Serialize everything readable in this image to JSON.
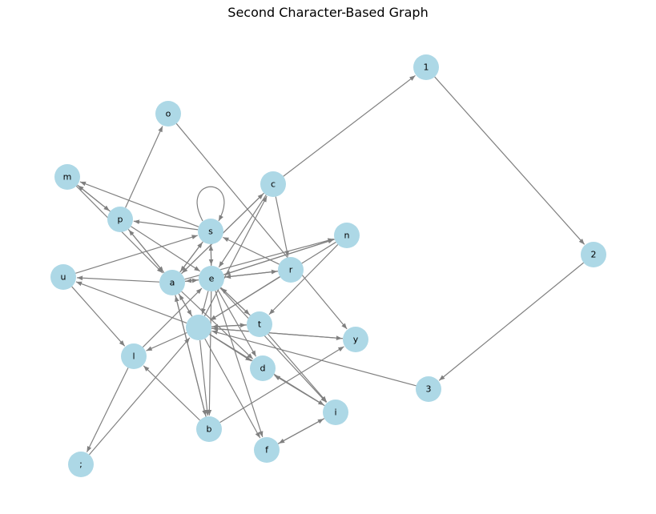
{
  "title": "Second Character-Based Graph",
  "colors": {
    "node": "#add8e6",
    "edge": "#808080",
    "background": "#ffffff"
  },
  "nodes": [
    {
      "id": "1",
      "label": "1"
    },
    {
      "id": "2",
      "label": "2"
    },
    {
      "id": "3",
      "label": "3"
    },
    {
      "id": "o",
      "label": "o"
    },
    {
      "id": "m",
      "label": "m"
    },
    {
      "id": "c",
      "label": "c"
    },
    {
      "id": "p",
      "label": "p"
    },
    {
      "id": "s",
      "label": "s"
    },
    {
      "id": "n",
      "label": "n"
    },
    {
      "id": "u",
      "label": "u"
    },
    {
      "id": "r",
      "label": "r"
    },
    {
      "id": "a",
      "label": "a"
    },
    {
      "id": "e",
      "label": "e"
    },
    {
      "id": "space",
      "label": " "
    },
    {
      "id": "t",
      "label": "t"
    },
    {
      "id": "y",
      "label": "y"
    },
    {
      "id": "l",
      "label": "l"
    },
    {
      "id": "d",
      "label": "d"
    },
    {
      "id": "i",
      "label": "i"
    },
    {
      "id": "b",
      "label": "b"
    },
    {
      "id": "f",
      "label": "f"
    },
    {
      "id": "semi",
      "label": ";"
    }
  ],
  "edges": [
    [
      "c",
      "1"
    ],
    [
      "1",
      "2"
    ],
    [
      "2",
      "3"
    ],
    [
      "3",
      "space"
    ],
    [
      "p",
      "o"
    ],
    [
      "o",
      "y"
    ],
    [
      "p",
      "m"
    ],
    [
      "m",
      "p"
    ],
    [
      "m",
      "a"
    ],
    [
      "s",
      "m"
    ],
    [
      "s",
      "s"
    ],
    [
      "s",
      "p"
    ],
    [
      "p",
      "a"
    ],
    [
      "p",
      "e"
    ],
    [
      "a",
      "p"
    ],
    [
      "a",
      "s"
    ],
    [
      "s",
      "a"
    ],
    [
      "s",
      "e"
    ],
    [
      "e",
      "s"
    ],
    [
      "u",
      "s"
    ],
    [
      "r",
      "s"
    ],
    [
      "a",
      "c"
    ],
    [
      "c",
      "a"
    ],
    [
      "space",
      "c"
    ],
    [
      "c",
      "e"
    ],
    [
      "c",
      "r"
    ],
    [
      "a",
      "n"
    ],
    [
      "e",
      "n"
    ],
    [
      "n",
      "e"
    ],
    [
      "n",
      "space"
    ],
    [
      "n",
      "t"
    ],
    [
      "r",
      "e"
    ],
    [
      "e",
      "r"
    ],
    [
      "r",
      "space"
    ],
    [
      "a",
      "u"
    ],
    [
      "space",
      "u"
    ],
    [
      "u",
      "l"
    ],
    [
      "a",
      "space"
    ],
    [
      "space",
      "a"
    ],
    [
      "a",
      "b"
    ],
    [
      "b",
      "a"
    ],
    [
      "a",
      "d"
    ],
    [
      "a",
      "e"
    ],
    [
      "e",
      "a"
    ],
    [
      "e",
      "space"
    ],
    [
      "e",
      "t"
    ],
    [
      "t",
      "e"
    ],
    [
      "e",
      "d"
    ],
    [
      "e",
      "f"
    ],
    [
      "e",
      "i"
    ],
    [
      "e",
      "b"
    ],
    [
      "space",
      "t"
    ],
    [
      "t",
      "space"
    ],
    [
      "y",
      "space"
    ],
    [
      "space",
      "y"
    ],
    [
      "space",
      "d"
    ],
    [
      "space",
      "i"
    ],
    [
      "space",
      "b"
    ],
    [
      "space",
      "f"
    ],
    [
      "space",
      "l"
    ],
    [
      "t",
      "i"
    ],
    [
      "i",
      "d"
    ],
    [
      "i",
      "f"
    ],
    [
      "f",
      "i"
    ],
    [
      "l",
      "e"
    ],
    [
      "l",
      "semi"
    ],
    [
      "semi",
      "space"
    ],
    [
      "b",
      "l"
    ],
    [
      "b",
      "y"
    ]
  ]
}
